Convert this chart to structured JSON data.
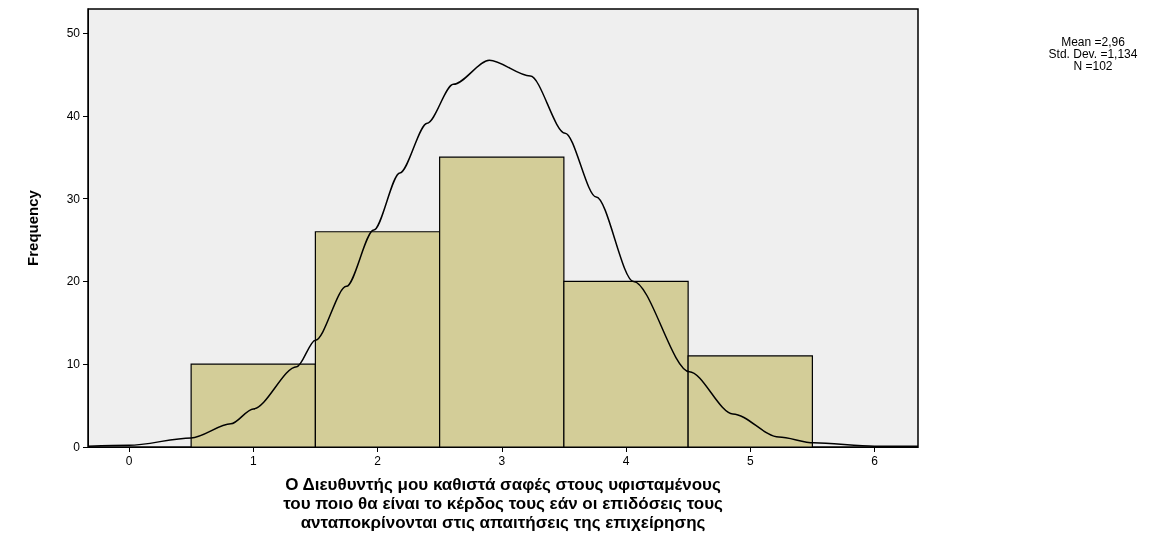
{
  "chart_data": {
    "type": "histogram",
    "xlabel": "Ο Διευθυντής μου καθιστά σαφές στους υφισταμένους\nτου ποιο θα είναι το κέρδος τους εάν οι επιδόσεις τους\nανταποκρίνονται στις απαιτήσεις της επιχείρησης",
    "ylabel": "Frequency",
    "annotations": [
      "Mean =2,96",
      "Std. Dev. =1,134",
      "N =102"
    ],
    "bins": [
      0.5,
      1.5,
      2.5,
      3.5,
      4.5,
      5.5
    ],
    "values": [
      10,
      26,
      35,
      20,
      11
    ],
    "color": "#d3cd98",
    "series": [
      {
        "type": "line",
        "color": "#000000",
        "x": [
          -0.33,
          0,
          0.5,
          0.82,
          1,
          1.35,
          1.5,
          1.75,
          1.97,
          2.18,
          2.4,
          2.61,
          2.9,
          3.23,
          3.51,
          3.76,
          4.06,
          4.51,
          4.86,
          5.23,
          5.51,
          6,
          6.35
        ],
        "values": [
          0.1,
          0.2,
          1.1,
          2.8,
          4.6,
          9.7,
          12.9,
          19.4,
          26.2,
          33.1,
          39.1,
          43.8,
          46.7,
          44.8,
          37.9,
          30.2,
          20,
          9.1,
          4,
          1.2,
          0.5,
          0.1,
          0.1
        ]
      }
    ],
    "xlim": [
      -0.33,
      6.35
    ],
    "xticks": [
      0,
      1,
      2,
      3,
      4,
      5,
      6
    ],
    "ylim": [
      0,
      52.9
    ],
    "yticks": [
      0,
      10,
      20,
      30,
      40,
      50
    ],
    "grid": false
  }
}
